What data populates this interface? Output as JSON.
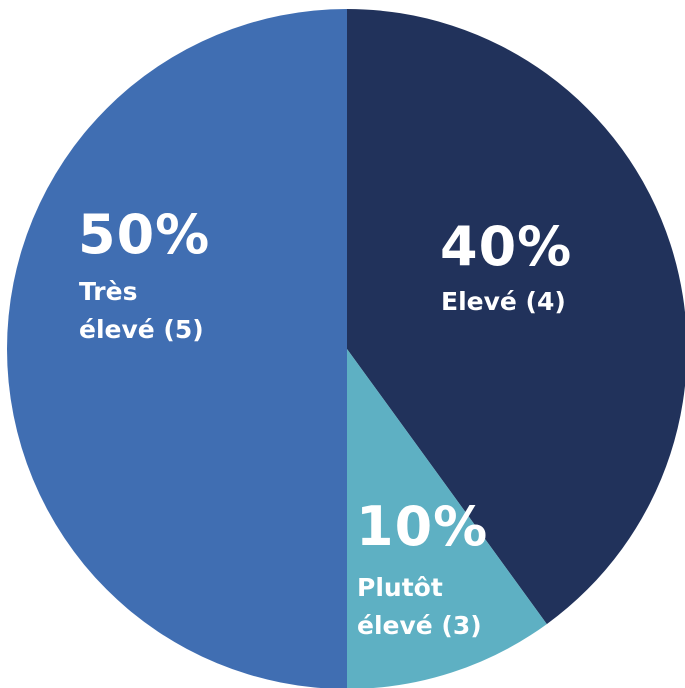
{
  "chart_data": {
    "type": "pie",
    "slices": [
      {
        "value": 40,
        "pct_label": "40%",
        "label_lines": [
          "Elevé (4)"
        ],
        "color": "#21325b"
      },
      {
        "value": 10,
        "pct_label": "10%",
        "label_lines": [
          "Plutôt",
          "élevé (3)"
        ],
        "color": "#5eb0c3"
      },
      {
        "value": 50,
        "pct_label": "50%",
        "label_lines": [
          "Très",
          "élevé (5)"
        ],
        "color": "#406eb2"
      }
    ]
  }
}
